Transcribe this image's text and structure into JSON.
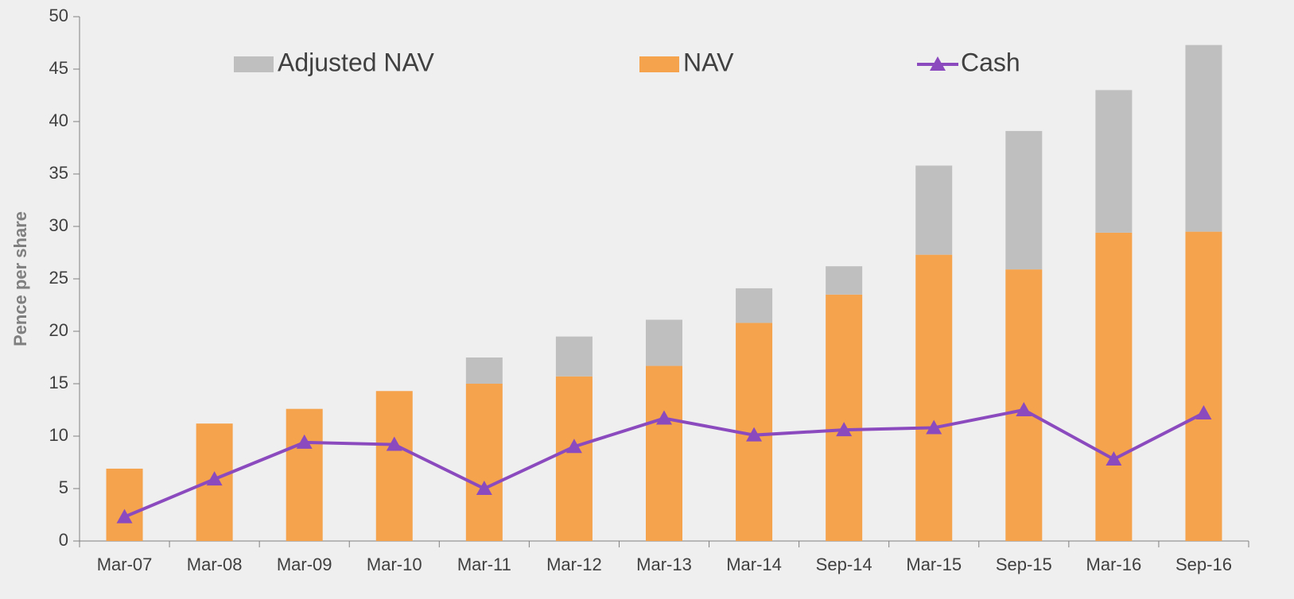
{
  "chart_data": {
    "type": "bar",
    "ylabel": "Pence per share",
    "categories": [
      "Mar-07",
      "Mar-08",
      "Mar-09",
      "Mar-10",
      "Mar-11",
      "Mar-12",
      "Mar-13",
      "Mar-14",
      "Sep-14",
      "Mar-15",
      "Sep-15",
      "Mar-16",
      "Sep-16"
    ],
    "series": [
      {
        "name": "NAV",
        "color": "#f5a34d",
        "kind": "bar",
        "values": [
          6.9,
          11.2,
          12.6,
          14.3,
          15.0,
          15.7,
          16.7,
          20.8,
          23.5,
          27.3,
          25.9,
          29.4,
          29.5
        ]
      },
      {
        "name": "Adjusted NAV",
        "color": "#bfbfbf",
        "kind": "bar",
        "values": [
          null,
          null,
          null,
          null,
          2.5,
          3.8,
          4.4,
          3.3,
          2.7,
          8.5,
          13.2,
          13.6,
          17.8
        ]
      },
      {
        "name": "Cash",
        "color": "#8b4bbf",
        "kind": "line",
        "values": [
          2.3,
          5.9,
          9.4,
          9.2,
          5.0,
          9.0,
          11.7,
          10.1,
          10.6,
          10.8,
          12.5,
          7.8,
          12.2
        ]
      }
    ],
    "ylim": [
      0,
      50
    ],
    "yticks": [
      0,
      5,
      10,
      15,
      20,
      25,
      30,
      35,
      40,
      45,
      50
    ]
  }
}
